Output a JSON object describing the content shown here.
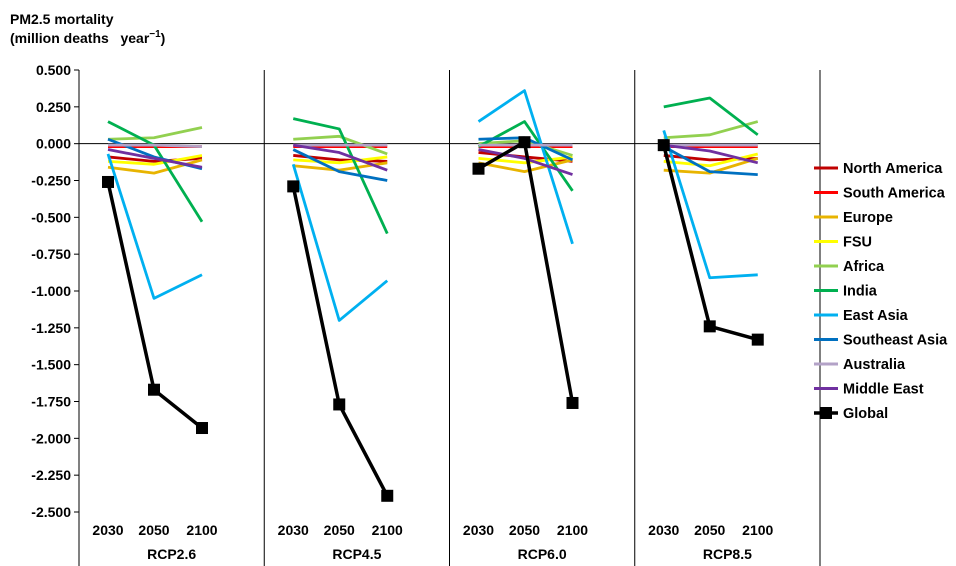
{
  "chart_data": {
    "type": "line",
    "ylabel_line1": "PM2.5 mortality",
    "ylabel_line2": "(million deaths   year",
    "ylabel_sup": "−1",
    "ylabel_close": ")",
    "ylim": [
      -2.5,
      0.5
    ],
    "ytick_values": [
      0.5,
      0.25,
      0.0,
      -0.25,
      -0.5,
      -0.75,
      -1.0,
      -1.25,
      -1.5,
      -1.75,
      -2.0,
      -2.25,
      -2.5
    ],
    "ytick_labels": [
      "0.500",
      "0.250",
      "0.000",
      "-0.250",
      "-0.500",
      "-0.750",
      "-1.000",
      "-1.250",
      "-1.500",
      "-1.750",
      "-2.000",
      "-2.250",
      "-2.500"
    ],
    "grid": false,
    "legend_position": "right",
    "x": [
      "2030",
      "2050",
      "2100"
    ],
    "groups": [
      "RCP2.6",
      "RCP4.5",
      "RCP6.0",
      "RCP8.5"
    ],
    "series": [
      {
        "name": "North America",
        "color": "#C00000",
        "values": [
          [
            -0.09,
            -0.12,
            -0.1
          ],
          [
            -0.08,
            -0.11,
            -0.12
          ],
          [
            -0.06,
            -0.09,
            -0.12
          ],
          [
            -0.08,
            -0.11,
            -0.1
          ]
        ]
      },
      {
        "name": "South America",
        "color": "#FF0000",
        "values": [
          [
            -0.02,
            -0.02,
            -0.02
          ],
          [
            -0.02,
            -0.02,
            -0.02
          ],
          [
            -0.02,
            -0.02,
            -0.02
          ],
          [
            -0.02,
            -0.02,
            -0.02
          ]
        ]
      },
      {
        "name": "Europe",
        "color": "#E8B400",
        "values": [
          [
            -0.16,
            -0.2,
            -0.11
          ],
          [
            -0.15,
            -0.18,
            -0.13
          ],
          [
            -0.13,
            -0.19,
            -0.11
          ],
          [
            -0.18,
            -0.2,
            -0.1
          ]
        ]
      },
      {
        "name": "FSU",
        "color": "#FFFF00",
        "values": [
          [
            -0.12,
            -0.14,
            -0.08
          ],
          [
            -0.11,
            -0.13,
            -0.09
          ],
          [
            -0.1,
            -0.13,
            -0.09
          ],
          [
            -0.12,
            -0.15,
            -0.07
          ]
        ]
      },
      {
        "name": "Africa",
        "color": "#92D050",
        "values": [
          [
            0.03,
            0.04,
            0.11
          ],
          [
            0.03,
            0.05,
            -0.07
          ],
          [
            0.0,
            0.02,
            -0.08
          ],
          [
            0.04,
            0.06,
            0.15
          ]
        ]
      },
      {
        "name": "India",
        "color": "#00B050",
        "values": [
          [
            0.15,
            -0.01,
            -0.53
          ],
          [
            0.17,
            0.1,
            -0.61
          ],
          [
            -0.02,
            0.15,
            -0.32
          ],
          [
            0.25,
            0.31,
            0.06
          ]
        ]
      },
      {
        "name": "East Asia",
        "color": "#00B0F0",
        "values": [
          [
            -0.07,
            -1.05,
            -0.89
          ],
          [
            -0.14,
            -1.2,
            -0.93
          ],
          [
            0.15,
            0.36,
            -0.68
          ],
          [
            0.09,
            -0.91,
            -0.89
          ]
        ]
      },
      {
        "name": "Southeast Asia",
        "color": "#0070C0",
        "values": [
          [
            0.03,
            -0.09,
            -0.17
          ],
          [
            -0.04,
            -0.19,
            -0.25
          ],
          [
            0.03,
            0.04,
            -0.11
          ],
          [
            -0.02,
            -0.19,
            -0.21
          ]
        ]
      },
      {
        "name": "Australia",
        "color": "#B3A2C7",
        "values": [
          [
            -0.01,
            -0.01,
            -0.02
          ],
          [
            -0.01,
            -0.01,
            -0.01
          ],
          [
            -0.01,
            -0.01,
            -0.01
          ],
          [
            -0.01,
            -0.01,
            -0.01
          ]
        ]
      },
      {
        "name": "Middle East",
        "color": "#7030A0",
        "values": [
          [
            -0.04,
            -0.1,
            -0.16
          ],
          [
            -0.01,
            -0.06,
            -0.18
          ],
          [
            -0.04,
            -0.1,
            -0.21
          ],
          [
            -0.01,
            -0.05,
            -0.13
          ]
        ]
      },
      {
        "name": "Global",
        "color": "#000000",
        "marker": "square",
        "values": [
          [
            -0.26,
            -1.67,
            -1.93
          ],
          [
            -0.29,
            -1.77,
            -2.39
          ],
          [
            -0.17,
            0.01,
            -1.76
          ],
          [
            -0.01,
            -1.24,
            -1.33
          ]
        ]
      }
    ]
  }
}
